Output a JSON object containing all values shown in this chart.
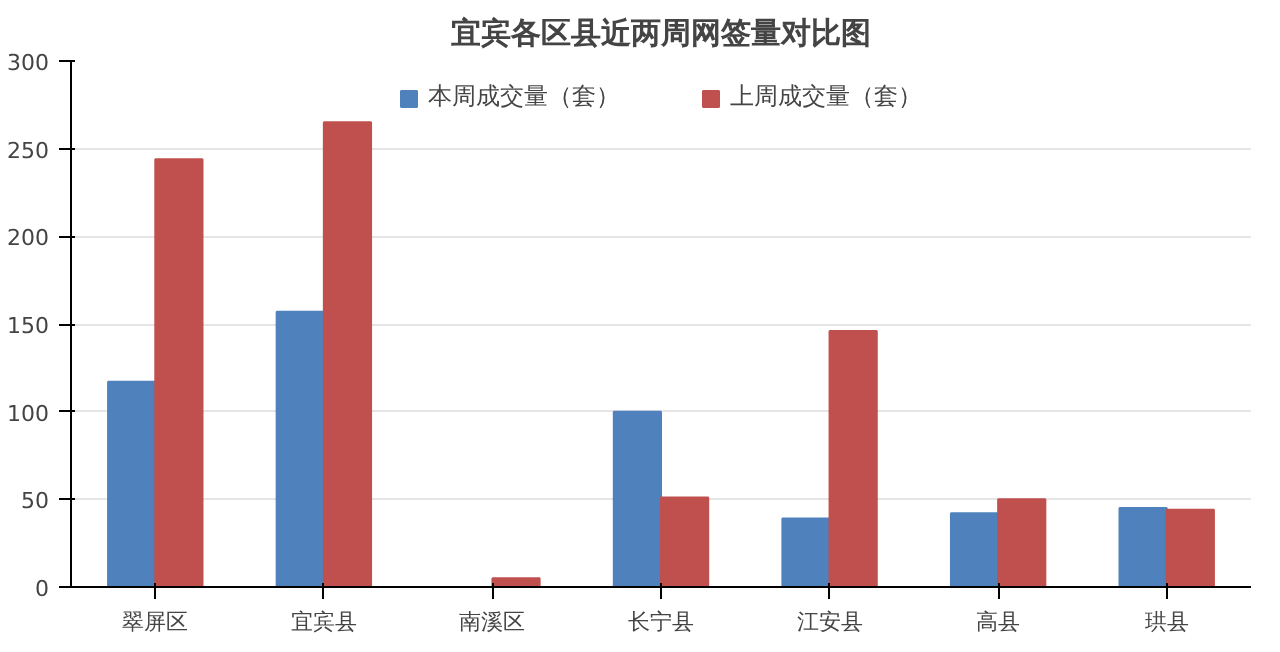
{
  "chart_data": {
    "type": "bar",
    "title": "宜宾各区县近两周网签量对比图",
    "categories": [
      "翠屏区",
      "宜宾县",
      "南溪区",
      "长宁县",
      "江安县",
      "高县",
      "珙县"
    ],
    "series": [
      {
        "name": "本周成交量（套）",
        "color": "#4f81bd",
        "values": [
          117,
          157,
          0,
          100,
          39,
          42,
          45
        ]
      },
      {
        "name": "上周成交量（套）",
        "color": "#c0504d",
        "values": [
          244,
          265,
          5,
          51,
          146,
          50,
          44
        ]
      }
    ],
    "ylim": [
      0,
      300
    ],
    "yticks": [
      0,
      50,
      100,
      150,
      200,
      250,
      300
    ],
    "grid": "y",
    "legend": "top"
  }
}
